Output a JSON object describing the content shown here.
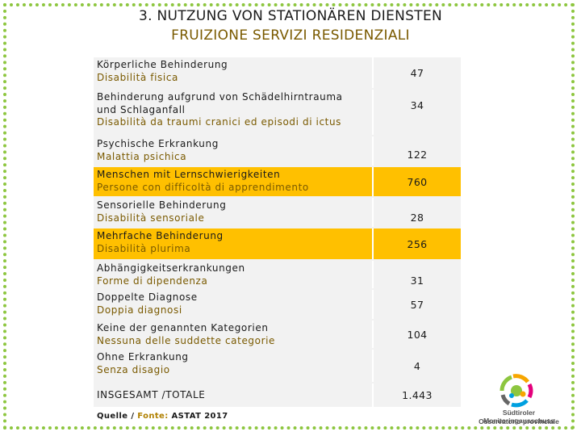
{
  "title": {
    "de": "3. NUTZUNG VON STATIONÄREN DIENSTEN",
    "it": "FRUIZIONE SERVIZI RESIDENZIALI"
  },
  "rows": [
    {
      "de": "Körperliche Behinderung",
      "de2": "",
      "it": "Disabilità fisica",
      "value": "47",
      "highlight": false
    },
    {
      "de": "Behinderung aufgrund von Schädelhirntrauma",
      "de2": "und Schlaganfall",
      "it": "Disabilità da traumi cranici ed episodi di ictus",
      "value": "34",
      "highlight": false
    },
    {
      "de": "Psychische Erkrankung",
      "de2": "",
      "it": "Malattia psichica",
      "value": "122",
      "highlight": false
    },
    {
      "de": "Menschen mit Lernschwierigkeiten",
      "de2": "",
      "it": "Persone con difficoltà di apprendimento",
      "value": "760",
      "highlight": true
    },
    {
      "de": "Sensorielle Behinderung",
      "de2": "",
      "it": "Disabilità sensoriale",
      "value": "28",
      "highlight": false
    },
    {
      "de": "Mehrfache Behinderung",
      "de2": "",
      "it": "Disabilità plurima",
      "value": "256",
      "highlight": true
    },
    {
      "de": "Abhängigkeitserkrankungen",
      "de2": "",
      "it": "Forme di dipendenza",
      "value": "31",
      "highlight": false
    },
    {
      "de": "Doppelte Diagnose",
      "de2": "",
      "it": "Doppia diagnosi",
      "value": "57",
      "highlight": false
    },
    {
      "de": "Keine der genannten Kategorien",
      "de2": "",
      "it": "Nessuna delle suddette categorie",
      "value": "104",
      "highlight": false
    },
    {
      "de": "Ohne Erkrankung",
      "de2": "",
      "it": "Senza disagio",
      "value": "4",
      "highlight": false
    }
  ],
  "total": {
    "label": "INSGESAMT /TOTALE",
    "value": "1.443"
  },
  "source": {
    "de": "Quelle /",
    "it": "Fonte:",
    "text": "ASTAT 2017"
  },
  "logo": {
    "line1": "Südtiroler Monitoringausschuss",
    "line2": "Osservatorio provinciale"
  },
  "colors": {
    "highlight": "#ffc000",
    "frame": "#8dc63f",
    "italian_text": "#7a5a00"
  }
}
